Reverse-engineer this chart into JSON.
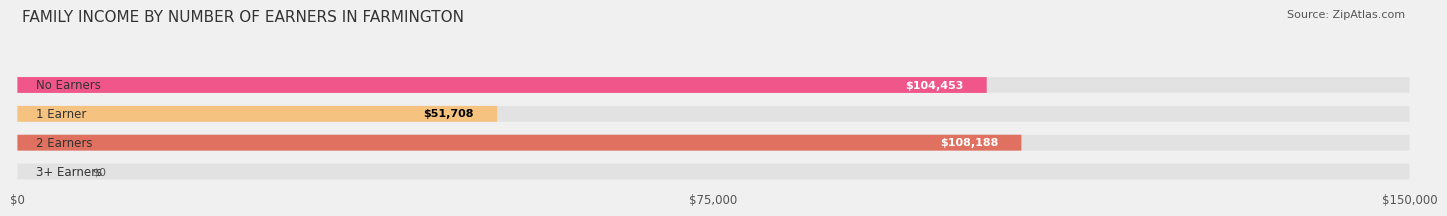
{
  "title": "FAMILY INCOME BY NUMBER OF EARNERS IN FARMINGTON",
  "source": "Source: ZipAtlas.com",
  "categories": [
    "No Earners",
    "1 Earner",
    "2 Earners",
    "3+ Earners"
  ],
  "values": [
    104453,
    51708,
    108188,
    0
  ],
  "bar_colors": [
    "#f0568a",
    "#f5c37f",
    "#e07060",
    "#a8c4e0"
  ],
  "label_colors": [
    "white",
    "black",
    "white",
    "black"
  ],
  "value_labels": [
    "$104,453",
    "$51,708",
    "$108,188",
    "$0"
  ],
  "xlim": [
    0,
    150000
  ],
  "xtick_values": [
    0,
    75000,
    150000
  ],
  "xtick_labels": [
    "$0",
    "$75,000",
    "$150,000"
  ],
  "background_color": "#f0f0f0",
  "bar_background_color": "#e2e2e2",
  "title_fontsize": 11,
  "bar_height": 0.55
}
